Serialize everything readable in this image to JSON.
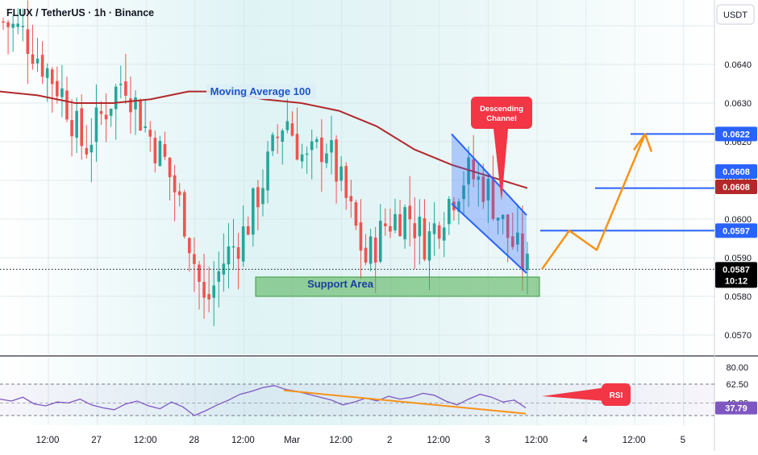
{
  "header": {
    "symbol_line": "FLUX / TetherUS · 1h · Binance"
  },
  "currency_button": "USDT",
  "colors": {
    "up": "#26a69a",
    "down": "#ef5350",
    "ma": "#b2282b",
    "channel": "#2962ff",
    "forecast": "#f7931a",
    "support": "#4caf50",
    "rsi": "#7e57c2",
    "trendline": "#f7931a",
    "background": "#e9f6f5"
  },
  "price_axis": {
    "ticks": [
      "0.0640",
      "0.0630",
      "0.0620",
      "0.0610",
      "0.0600",
      "0.0590",
      "0.0580",
      "0.0570"
    ],
    "badges": [
      {
        "label": "0.0622",
        "color": "#2962ff"
      },
      {
        "label": "0.0608",
        "color": "#2962ff"
      },
      {
        "label": "0.0608",
        "color": "#b2282b"
      },
      {
        "label": "0.0597",
        "color": "#2962ff"
      }
    ],
    "current_price": "0.0587",
    "countdown": "10:12"
  },
  "time_axis": {
    "labels": [
      "12:00",
      "27",
      "12:00",
      "28",
      "12:00",
      "Mar",
      "12:00",
      "2",
      "12:00",
      "3",
      "12:00",
      "4",
      "12:00",
      "5"
    ]
  },
  "annotations": {
    "ma_label": "Moving Average 100",
    "channel_callout": "Descending Channel",
    "support_label": "Support Area",
    "rsi_callout": "RSI"
  },
  "rsi_axis": {
    "ticks": [
      "80.00",
      "62.50",
      "42.88"
    ],
    "current": "37.79"
  },
  "chart_data": [
    {
      "type": "candlestick",
      "title": "FLUX / TetherUS · 1h · Binance",
      "y_unit": "USDT",
      "ylim": [
        0.0564,
        0.0653
      ],
      "x_range": [
        "Feb 26",
        "Mar 5"
      ],
      "grid": true,
      "ohlc_approx": {
        "start": 0.0651,
        "high": 0.0651,
        "low": 0.0573,
        "end": 0.0587,
        "path": [
          0.0651,
          0.0648,
          0.064,
          0.0632,
          0.0618,
          0.0628,
          0.0637,
          0.0624,
          0.0615,
          0.06,
          0.0577,
          0.059,
          0.0597,
          0.0612,
          0.0627,
          0.0614,
          0.062,
          0.0605,
          0.0589,
          0.0599,
          0.0602,
          0.0594,
          0.0604,
          0.0612,
          0.0608,
          0.0596,
          0.0587
        ]
      },
      "moving_average_100": [
        0.0633,
        0.0632,
        0.063,
        0.063,
        0.0631,
        0.0633,
        0.0633,
        0.0631,
        0.063,
        0.0628,
        0.0624,
        0.0618,
        0.0614,
        0.0611,
        0.0608
      ],
      "current_price": 0.0587,
      "levels": [
        0.0622,
        0.0608,
        0.0597
      ],
      "support_area": [
        0.058,
        0.0585
      ],
      "descending_channel": {
        "upper": [
          0.0622,
          0.0601
        ],
        "lower": [
          0.0604,
          0.0586
        ]
      },
      "projection": [
        0.0587,
        0.0597,
        0.0592,
        0.0622
      ]
    },
    {
      "type": "line",
      "title": "RSI",
      "ylim": [
        20,
        90
      ],
      "levels": [
        80.0,
        62.5,
        42.88
      ],
      "current": 37.79,
      "series": [
        {
          "name": "RSI",
          "values": [
            47,
            45,
            49,
            42,
            40,
            44,
            43,
            47,
            41,
            38,
            36,
            42,
            45,
            40,
            37,
            44,
            39,
            30,
            35,
            41,
            46,
            52,
            55,
            59,
            61,
            57,
            55,
            52,
            49,
            46,
            41,
            44,
            48,
            45,
            50,
            47,
            49,
            53,
            51,
            45,
            41,
            47,
            52,
            49,
            44,
            46,
            38
          ]
        }
      ],
      "trendline": [
        56,
        32
      ]
    }
  ]
}
